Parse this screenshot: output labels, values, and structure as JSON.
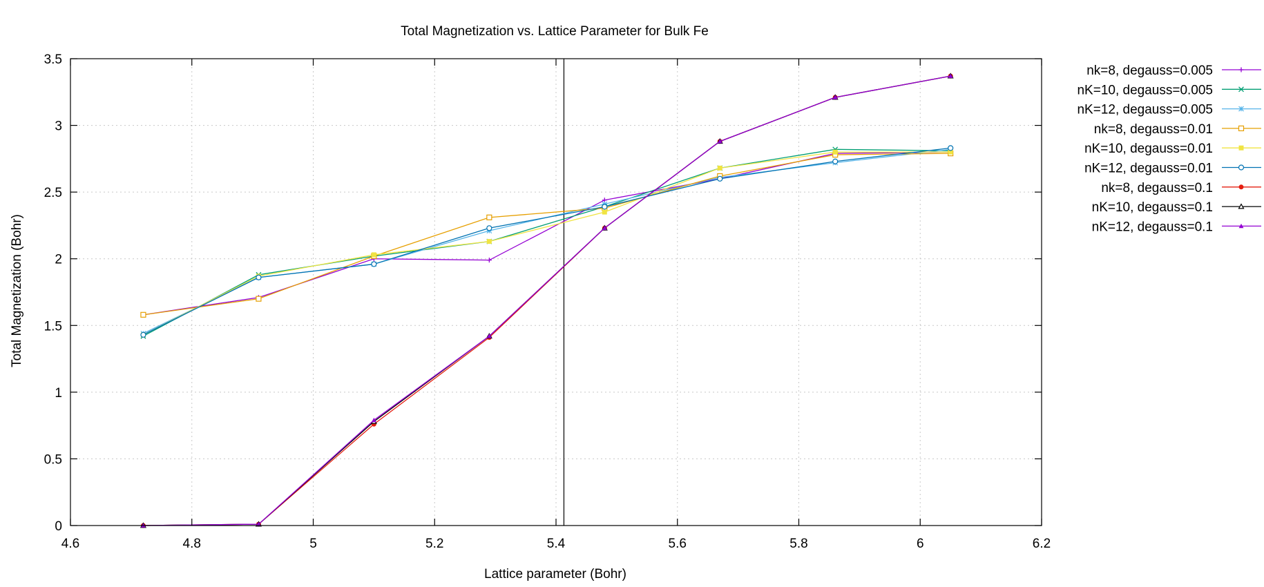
{
  "chart_data": {
    "type": "line",
    "title": "Total Magnetization vs. Lattice Parameter for Bulk Fe",
    "xlabel": "Lattice parameter (Bohr)",
    "ylabel": "Total Magnetization (Bohr)",
    "xlim": [
      4.6,
      6.2
    ],
    "ylim": [
      0,
      3.5
    ],
    "xticks": [
      "4.6",
      "4.8",
      "5",
      "5.2",
      "5.4",
      "5.6",
      "5.8",
      "6",
      "6.2"
    ],
    "yticks": [
      "0",
      "0.5",
      "1",
      "1.5",
      "2",
      "2.5",
      "3",
      "3.5"
    ],
    "grid": true,
    "legend_position": "right",
    "reference_line_x": 5.413,
    "x": [
      4.72,
      4.91,
      5.1,
      5.29,
      5.48,
      5.67,
      5.86,
      6.05
    ],
    "series": [
      {
        "name": "nk=8, degauss=0.005",
        "color": "#9400d3",
        "marker": "plus",
        "values": [
          1.58,
          1.71,
          2.0,
          1.99,
          2.44,
          2.6,
          2.79,
          2.8
        ]
      },
      {
        "name": "nK=10, degauss=0.005",
        "color": "#009e73",
        "marker": "cross",
        "values": [
          1.42,
          1.88,
          2.02,
          2.13,
          2.39,
          2.68,
          2.82,
          2.81
        ]
      },
      {
        "name": "nK=12, degauss=0.005",
        "color": "#56b4e9",
        "marker": "star",
        "values": [
          1.44,
          1.86,
          1.96,
          2.21,
          2.41,
          2.61,
          2.72,
          2.82
        ]
      },
      {
        "name": "nk=8, degauss=0.01",
        "color": "#e69f00",
        "marker": "open-square",
        "values": [
          1.58,
          1.7,
          2.02,
          2.31,
          2.38,
          2.62,
          2.78,
          2.79
        ]
      },
      {
        "name": "nK=10, degauss=0.01",
        "color": "#f0e442",
        "marker": "filled-square",
        "values": [
          1.43,
          1.87,
          2.03,
          2.13,
          2.35,
          2.68,
          2.8,
          2.8
        ]
      },
      {
        "name": "nK=12, degauss=0.01",
        "color": "#0072b2",
        "marker": "open-circle",
        "values": [
          1.43,
          1.86,
          1.96,
          2.23,
          2.39,
          2.6,
          2.73,
          2.83
        ]
      },
      {
        "name": "nk=8, degauss=0.1",
        "color": "#e51e10",
        "marker": "filled-circle",
        "values": [
          0.0,
          0.01,
          0.76,
          1.41,
          2.23,
          2.88,
          3.21,
          3.37
        ]
      },
      {
        "name": "nK=10, degauss=0.1",
        "color": "#000000",
        "marker": "open-triangle",
        "values": [
          0.0,
          0.01,
          0.78,
          1.42,
          2.23,
          2.88,
          3.21,
          3.37
        ]
      },
      {
        "name": "nK=12, degauss=0.1",
        "color": "#9400d3",
        "marker": "filled-triangle",
        "values": [
          0.0,
          0.01,
          0.79,
          1.42,
          2.23,
          2.88,
          3.21,
          3.37
        ]
      }
    ]
  }
}
